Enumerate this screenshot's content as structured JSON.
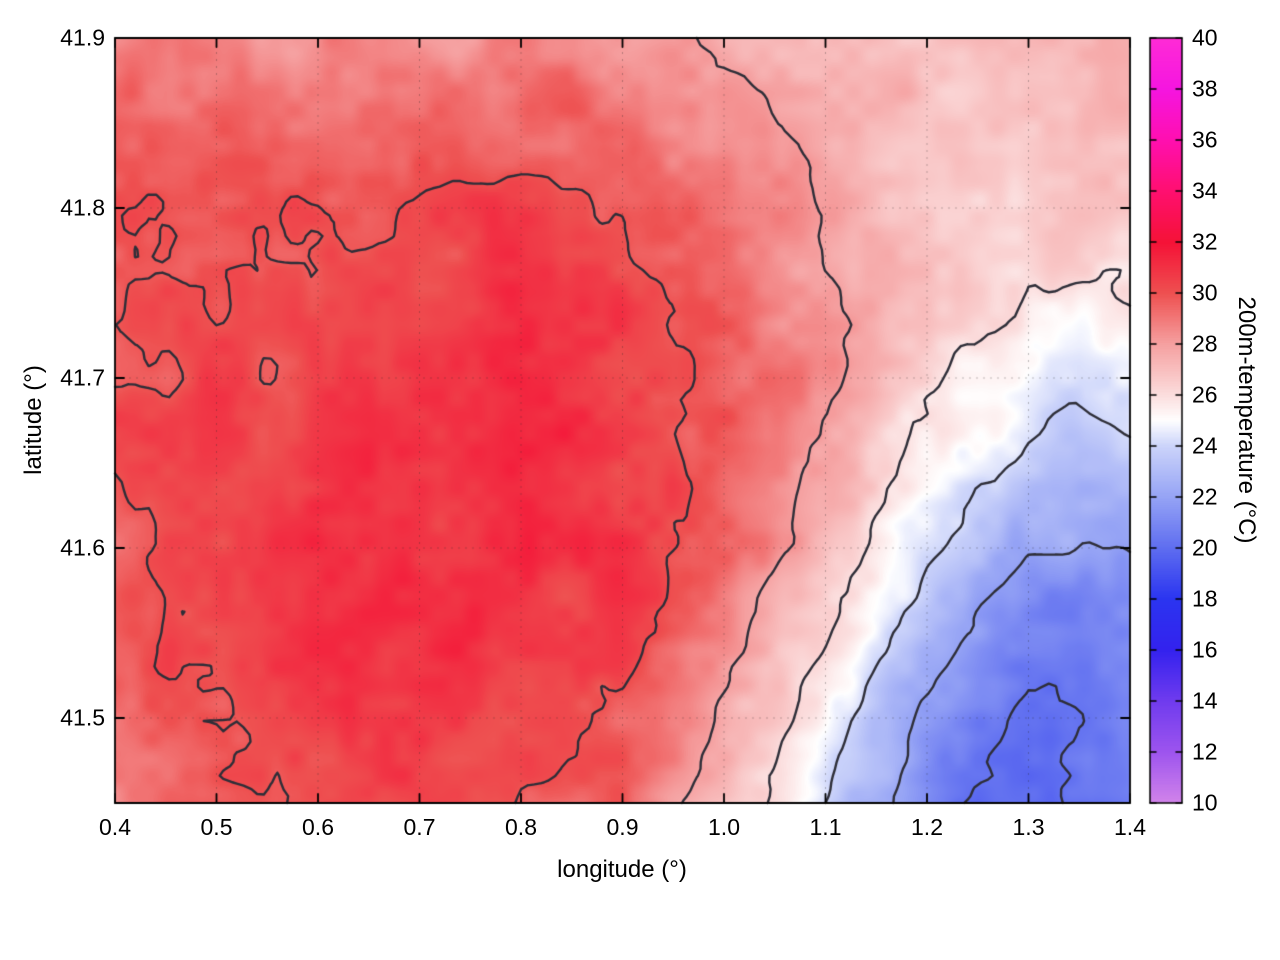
{
  "chart_data": {
    "type": "heatmap",
    "title": "",
    "xlabel": "longitude (°)",
    "ylabel": "latitude (°)",
    "xlim": [
      0.4,
      1.4
    ],
    "ylim": [
      41.45,
      41.9
    ],
    "grid_on": true,
    "xticks": {
      "values": [
        0.4,
        0.5,
        0.6,
        0.7,
        0.8,
        0.9,
        1.0,
        1.1,
        1.2,
        1.3,
        1.4
      ],
      "labels": [
        "0.4",
        "0.5",
        "0.6",
        "0.7",
        "0.8",
        "0.9",
        "1.0",
        "1.1",
        "1.2",
        "1.3",
        "1.4"
      ]
    },
    "yticks": {
      "values": [
        41.5,
        41.6,
        41.7,
        41.8,
        41.9
      ],
      "labels": [
        "41.5",
        "41.6",
        "41.7",
        "41.8",
        "41.9"
      ]
    },
    "contour_levels": [
      20,
      22,
      24,
      26,
      28,
      30
    ],
    "contour_color": "#2e2e38",
    "colorbar": {
      "label": "200m-temperature (°C)",
      "min": 10,
      "max": 40,
      "ticks": [
        10,
        12,
        14,
        16,
        18,
        20,
        22,
        24,
        26,
        28,
        30,
        32,
        34,
        36,
        38,
        40
      ],
      "tick_labels": [
        "10",
        "12",
        "14",
        "16",
        "18",
        "20",
        "22",
        "24",
        "26",
        "28",
        "30",
        "32",
        "34",
        "36",
        "38",
        "40"
      ],
      "colormap": [
        {
          "value": 10,
          "color": "#d183ea"
        },
        {
          "value": 12,
          "color": "#9d54ee"
        },
        {
          "value": 14,
          "color": "#6f3bee"
        },
        {
          "value": 16,
          "color": "#3322ee"
        },
        {
          "value": 18,
          "color": "#2b35f0"
        },
        {
          "value": 20,
          "color": "#5f6ef0"
        },
        {
          "value": 22,
          "color": "#96a4f5"
        },
        {
          "value": 24,
          "color": "#ccd4fa"
        },
        {
          "value": 25,
          "color": "#ffffff"
        },
        {
          "value": 26,
          "color": "#fbdddd"
        },
        {
          "value": 28,
          "color": "#f5a0a0"
        },
        {
          "value": 30,
          "color": "#ee5050"
        },
        {
          "value": 32,
          "color": "#f51237"
        },
        {
          "value": 34,
          "color": "#ff0f70"
        },
        {
          "value": 36,
          "color": "#ff0fb0"
        },
        {
          "value": 38,
          "color": "#f515e0"
        },
        {
          "value": 40,
          "color": "#ff2bd6"
        }
      ]
    },
    "field": {
      "units": "°C",
      "lon": [
        0.4,
        0.45,
        0.5,
        0.55,
        0.6,
        0.65,
        0.7,
        0.75,
        0.8,
        0.85,
        0.9,
        0.95,
        1.0,
        1.05,
        1.1,
        1.15,
        1.2,
        1.25,
        1.3,
        1.35,
        1.4
      ],
      "lat": [
        41.9,
        41.85,
        41.8,
        41.75,
        41.7,
        41.65,
        41.6,
        41.55,
        41.5,
        41.45
      ],
      "temperature": [
        [
          29.0,
          29.2,
          28.8,
          28.5,
          28.3,
          28.6,
          28.4,
          28.2,
          28.5,
          28.8,
          28.4,
          28.0,
          27.8,
          27.6,
          27.4,
          27.2,
          27.0,
          26.8,
          26.9,
          27.2,
          27.0
        ],
        [
          29.5,
          29.6,
          29.3,
          29.4,
          29.0,
          29.2,
          29.4,
          29.0,
          29.3,
          29.6,
          29.2,
          28.8,
          28.4,
          28.0,
          27.6,
          27.3,
          27.1,
          26.9,
          27.0,
          27.3,
          27.1
        ],
        [
          29.8,
          30.0,
          29.6,
          29.8,
          30.0,
          29.7,
          30.0,
          30.2,
          30.4,
          30.3,
          30.0,
          29.5,
          29.0,
          28.4,
          27.8,
          27.4,
          27.0,
          26.8,
          26.6,
          26.9,
          26.7
        ],
        [
          30.0,
          30.2,
          29.8,
          30.4,
          30.2,
          30.5,
          30.3,
          30.6,
          30.8,
          30.6,
          30.3,
          30.0,
          29.4,
          28.8,
          28.2,
          27.6,
          27.0,
          26.5,
          26.0,
          25.8,
          26.2
        ],
        [
          30.2,
          30.0,
          30.4,
          30.1,
          30.6,
          30.4,
          30.8,
          30.6,
          31.0,
          30.8,
          30.5,
          30.2,
          29.6,
          29.0,
          28.2,
          27.4,
          26.4,
          25.6,
          25.0,
          24.6,
          25.0
        ],
        [
          30.0,
          30.3,
          30.6,
          30.4,
          30.8,
          31.0,
          30.7,
          31.0,
          31.2,
          30.9,
          30.6,
          30.2,
          29.5,
          28.6,
          27.6,
          26.6,
          25.4,
          24.4,
          23.6,
          23.0,
          23.4
        ],
        [
          29.8,
          30.1,
          30.4,
          30.7,
          31.0,
          30.8,
          31.1,
          30.9,
          31.2,
          31.0,
          30.6,
          30.0,
          29.2,
          28.2,
          27.0,
          25.8,
          24.4,
          23.2,
          22.2,
          21.8,
          22.2
        ],
        [
          29.6,
          29.9,
          30.2,
          30.5,
          30.8,
          31.0,
          30.8,
          31.0,
          30.8,
          30.6,
          30.2,
          29.6,
          28.6,
          27.4,
          26.0,
          24.6,
          23.0,
          21.8,
          20.8,
          20.4,
          21.0
        ],
        [
          29.4,
          29.7,
          30.0,
          30.2,
          30.5,
          30.7,
          30.9,
          30.6,
          30.4,
          30.2,
          29.8,
          29.0,
          27.8,
          26.4,
          24.8,
          23.2,
          21.6,
          20.4,
          19.4,
          19.8,
          20.6
        ],
        [
          29.2,
          29.5,
          29.8,
          30.0,
          30.2,
          30.4,
          30.6,
          30.4,
          30.0,
          29.6,
          29.2,
          28.4,
          27.2,
          25.6,
          24.0,
          22.4,
          20.8,
          19.8,
          19.6,
          20.2,
          21.0
        ]
      ]
    }
  }
}
